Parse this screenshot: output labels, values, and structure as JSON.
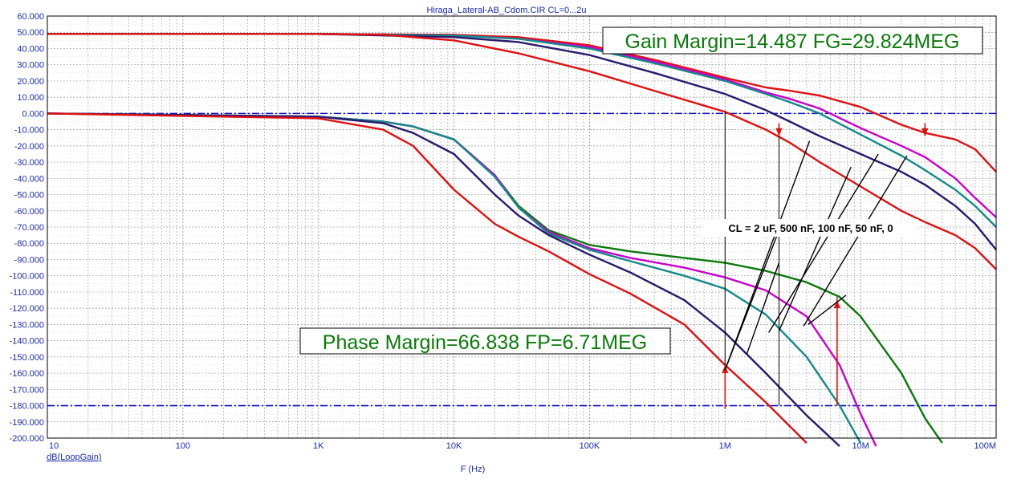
{
  "chart_data": {
    "type": "line",
    "title": "Hiraga_Lateral-AB_Cdom.CIR CL=0...2u",
    "xlabel": "F (Hz)",
    "trace_label": "dB(LoopGain)",
    "xscale": "log",
    "xlim": [
      10,
      100000000
    ],
    "ylim": [
      -200,
      60
    ],
    "x_ticks": [
      {
        "v": 10,
        "label": "10"
      },
      {
        "v": 100,
        "label": "100"
      },
      {
        "v": 1000,
        "label": "1K"
      },
      {
        "v": 10000,
        "label": "10K"
      },
      {
        "v": 100000,
        "label": "100K"
      },
      {
        "v": 1000000,
        "label": "1M"
      },
      {
        "v": 10000000,
        "label": "10M"
      },
      {
        "v": 100000000,
        "label": "100M"
      }
    ],
    "y_ticks": [
      {
        "v": 60,
        "label": "60.000"
      },
      {
        "v": 50,
        "label": "50.000"
      },
      {
        "v": 40,
        "label": "40.000"
      },
      {
        "v": 30,
        "label": "30.000"
      },
      {
        "v": 20,
        "label": "20.000"
      },
      {
        "v": 10,
        "label": "10.000"
      },
      {
        "v": 0,
        "label": "0.000"
      },
      {
        "v": -10,
        "label": "-10.000"
      },
      {
        "v": -20,
        "label": "-20.000"
      },
      {
        "v": -30,
        "label": "-30.000"
      },
      {
        "v": -40,
        "label": "-40.000"
      },
      {
        "v": -50,
        "label": "-50.000"
      },
      {
        "v": -60,
        "label": "-60.000"
      },
      {
        "v": -70,
        "label": "-70.000"
      },
      {
        "v": -80,
        "label": "-80.000"
      },
      {
        "v": -90,
        "label": "-90.000"
      },
      {
        "v": -100,
        "label": "-100.000"
      },
      {
        "v": -110,
        "label": "-110.000"
      },
      {
        "v": -120,
        "label": "-120.000"
      },
      {
        "v": -130,
        "label": "-130.000"
      },
      {
        "v": -140,
        "label": "-140.000"
      },
      {
        "v": -150,
        "label": "-150.000"
      },
      {
        "v": -160,
        "label": "-160.000"
      },
      {
        "v": -170,
        "label": "-170.000"
      },
      {
        "v": -180,
        "label": "-180.000"
      },
      {
        "v": -190,
        "label": "-190.000"
      },
      {
        "v": -200,
        "label": "-200.000"
      }
    ],
    "grid": true,
    "reference_lines": [
      0,
      -180
    ],
    "series": [
      {
        "color": "#e01010",
        "points": [
          [
            10,
            49
          ],
          [
            1000,
            49
          ],
          [
            10000,
            48.5
          ],
          [
            30000,
            47
          ],
          [
            100000,
            42
          ],
          [
            300000,
            33
          ],
          [
            1000000,
            22
          ],
          [
            2000000,
            16
          ],
          [
            3000000,
            14
          ],
          [
            5000000,
            11
          ],
          [
            10000000,
            4
          ],
          [
            20000000,
            -7
          ],
          [
            30000000,
            -12
          ],
          [
            50000000,
            -16
          ],
          [
            70000000,
            -22
          ],
          [
            100000000,
            -36
          ]
        ]
      },
      {
        "color": "#cc00cc",
        "points": [
          [
            10,
            49
          ],
          [
            1000,
            49
          ],
          [
            10000,
            48
          ],
          [
            30000,
            46
          ],
          [
            100000,
            41
          ],
          [
            300000,
            32
          ],
          [
            1000000,
            21
          ],
          [
            2000000,
            13
          ],
          [
            3000000,
            9
          ],
          [
            5000000,
            3
          ],
          [
            10000000,
            -9
          ],
          [
            20000000,
            -20
          ],
          [
            30000000,
            -27
          ],
          [
            50000000,
            -40
          ],
          [
            70000000,
            -52
          ],
          [
            100000000,
            -64
          ]
        ]
      },
      {
        "color": "#138a8a",
        "points": [
          [
            10,
            49
          ],
          [
            1000,
            49
          ],
          [
            10000,
            48
          ],
          [
            30000,
            46
          ],
          [
            100000,
            40
          ],
          [
            300000,
            31
          ],
          [
            1000000,
            20
          ],
          [
            2000000,
            12
          ],
          [
            3000000,
            7
          ],
          [
            5000000,
            0
          ],
          [
            10000000,
            -13
          ],
          [
            20000000,
            -26
          ],
          [
            30000000,
            -35
          ],
          [
            50000000,
            -47
          ],
          [
            70000000,
            -57
          ],
          [
            100000000,
            -70
          ]
        ]
      },
      {
        "color": "#2a1a6e",
        "points": [
          [
            10,
            49
          ],
          [
            1000,
            49
          ],
          [
            10000,
            47
          ],
          [
            30000,
            44
          ],
          [
            100000,
            36
          ],
          [
            300000,
            25
          ],
          [
            1000000,
            12
          ],
          [
            2000000,
            2
          ],
          [
            3000000,
            -5
          ],
          [
            5000000,
            -14
          ],
          [
            10000000,
            -25
          ],
          [
            20000000,
            -36
          ],
          [
            30000000,
            -44
          ],
          [
            50000000,
            -57
          ],
          [
            70000000,
            -68
          ],
          [
            100000000,
            -84
          ]
        ]
      },
      {
        "color": "#e01010",
        "points": [
          [
            10,
            49
          ],
          [
            1000,
            49
          ],
          [
            3000,
            48.5
          ],
          [
            10000,
            45
          ],
          [
            30000,
            37
          ],
          [
            100000,
            26
          ],
          [
            300000,
            14
          ],
          [
            1000000,
            1
          ],
          [
            2000000,
            -10
          ],
          [
            3000000,
            -18
          ],
          [
            5000000,
            -30
          ],
          [
            10000000,
            -45
          ],
          [
            20000000,
            -60
          ],
          [
            30000000,
            -67
          ],
          [
            50000000,
            -75
          ],
          [
            70000000,
            -83
          ],
          [
            100000000,
            -96
          ]
        ]
      },
      {
        "color": "#0a7a0a",
        "points": [
          [
            10,
            0
          ],
          [
            1000,
            -2
          ],
          [
            3000,
            -5
          ],
          [
            5000,
            -8
          ],
          [
            10000,
            -16
          ],
          [
            20000,
            -38
          ],
          [
            30000,
            -57
          ],
          [
            50000,
            -72
          ],
          [
            100000,
            -81
          ],
          [
            200000,
            -85
          ],
          [
            500000,
            -89
          ],
          [
            1000000,
            -92
          ],
          [
            2000000,
            -97
          ],
          [
            4000000,
            -104
          ],
          [
            7000000,
            -113
          ],
          [
            10000000,
            -125
          ],
          [
            20000000,
            -160
          ],
          [
            30000000,
            -188
          ],
          [
            40000000,
            -203
          ]
        ]
      },
      {
        "color": "#cc00cc",
        "points": [
          [
            10,
            0
          ],
          [
            1000,
            -2
          ],
          [
            3000,
            -5
          ],
          [
            5000,
            -8
          ],
          [
            10000,
            -16
          ],
          [
            20000,
            -38
          ],
          [
            30000,
            -58
          ],
          [
            50000,
            -73
          ],
          [
            100000,
            -83
          ],
          [
            200000,
            -89
          ],
          [
            500000,
            -95
          ],
          [
            1000000,
            -101
          ],
          [
            2000000,
            -109
          ],
          [
            4000000,
            -125
          ],
          [
            7000000,
            -155
          ],
          [
            10000000,
            -185
          ],
          [
            13000000,
            -205
          ]
        ]
      },
      {
        "color": "#138a8a",
        "points": [
          [
            10,
            0
          ],
          [
            1000,
            -2
          ],
          [
            3000,
            -5
          ],
          [
            5000,
            -8
          ],
          [
            10000,
            -16
          ],
          [
            20000,
            -39
          ],
          [
            30000,
            -58
          ],
          [
            50000,
            -74
          ],
          [
            100000,
            -84
          ],
          [
            200000,
            -91
          ],
          [
            500000,
            -100
          ],
          [
            1000000,
            -108
          ],
          [
            2000000,
            -124
          ],
          [
            4000000,
            -150
          ],
          [
            7000000,
            -180
          ],
          [
            10000000,
            -203
          ]
        ]
      },
      {
        "color": "#2a1a6e",
        "points": [
          [
            10,
            0
          ],
          [
            1000,
            -2
          ],
          [
            3000,
            -6
          ],
          [
            5000,
            -12
          ],
          [
            10000,
            -25
          ],
          [
            20000,
            -50
          ],
          [
            30000,
            -63
          ],
          [
            50000,
            -75
          ],
          [
            100000,
            -87
          ],
          [
            200000,
            -98
          ],
          [
            500000,
            -115
          ],
          [
            1000000,
            -135
          ],
          [
            2000000,
            -160
          ],
          [
            4000000,
            -186
          ],
          [
            7000000,
            -205
          ]
        ]
      },
      {
        "color": "#e01010",
        "points": [
          [
            10,
            0
          ],
          [
            1000,
            -3
          ],
          [
            3000,
            -10
          ],
          [
            5000,
            -20
          ],
          [
            10000,
            -47
          ],
          [
            20000,
            -68
          ],
          [
            30000,
            -76
          ],
          [
            50000,
            -85
          ],
          [
            100000,
            -99
          ],
          [
            200000,
            -111
          ],
          [
            500000,
            -130
          ],
          [
            1000000,
            -155
          ],
          [
            2000000,
            -178
          ],
          [
            4000000,
            -203
          ]
        ]
      }
    ],
    "annotations": {
      "gain_margin": "Gain Margin=14.487 FG=29.824MEG",
      "phase_margin": "Phase Margin=66.838 FP=6.71MEG",
      "cl_note": "CL = 2 uF, 500 nF, 100 nF, 50 nF, 0"
    }
  }
}
